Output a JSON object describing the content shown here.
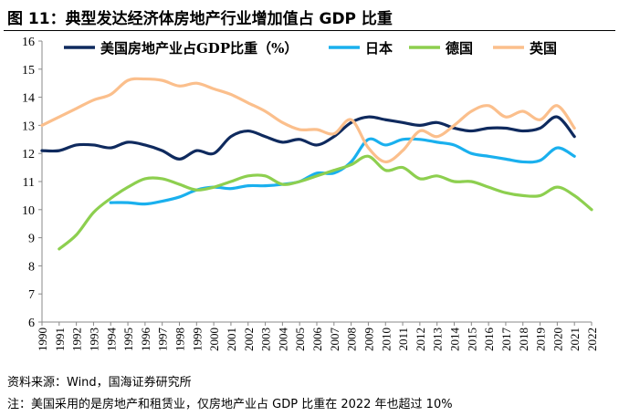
{
  "title": "图 11：典型发达经济体房地产行业增加值占 GDP 比重",
  "source": "资料来源：Wind，国海证券研究所",
  "note": "注：美国采用的是房地产和租赁业，仅房地产业占 GDP 比重在 2022 年也超过 10%",
  "chart_data": {
    "type": "line",
    "title": "图 11：典型发达经济体房地产行业增加值占 GDP 比重",
    "x": [
      1990,
      1991,
      1992,
      1993,
      1994,
      1995,
      1996,
      1997,
      1998,
      1999,
      2000,
      2001,
      2002,
      2003,
      2004,
      2005,
      2006,
      2007,
      2008,
      2009,
      2010,
      2011,
      2012,
      2013,
      2014,
      2015,
      2016,
      2017,
      2018,
      2019,
      2020,
      2021,
      2022
    ],
    "ylim": [
      6,
      16
    ],
    "yticks": [
      6,
      7,
      8,
      9,
      10,
      11,
      12,
      13,
      14,
      15,
      16
    ],
    "grid": false,
    "legend": "top",
    "series": [
      {
        "name": "美国房地产业占GDP比重（%）",
        "color": "#0F2A5E",
        "values": [
          12.1,
          12.1,
          12.3,
          12.3,
          12.2,
          12.4,
          12.3,
          12.1,
          11.8,
          12.1,
          12.0,
          12.6,
          12.8,
          12.6,
          12.4,
          12.5,
          12.3,
          12.6,
          13.1,
          13.3,
          13.2,
          13.1,
          13.0,
          13.1,
          12.9,
          12.8,
          12.9,
          12.9,
          12.8,
          12.9,
          13.3,
          12.6,
          null
        ]
      },
      {
        "name": "日本",
        "color": "#1AB0EE",
        "values": [
          null,
          null,
          null,
          null,
          10.25,
          10.25,
          10.2,
          10.3,
          10.45,
          10.7,
          10.8,
          10.75,
          10.85,
          10.85,
          10.9,
          11.0,
          11.3,
          11.3,
          11.7,
          12.5,
          12.3,
          12.5,
          12.5,
          12.4,
          12.3,
          12.0,
          11.9,
          11.8,
          11.7,
          11.75,
          12.2,
          11.9,
          null
        ]
      },
      {
        "name": "德国",
        "color": "#8DCF4F",
        "values": [
          null,
          8.6,
          9.1,
          9.9,
          10.4,
          10.8,
          11.1,
          11.1,
          10.9,
          10.7,
          10.8,
          11.0,
          11.2,
          11.2,
          10.9,
          11.0,
          11.2,
          11.4,
          11.6,
          11.9,
          11.4,
          11.5,
          11.1,
          11.2,
          11.0,
          11.0,
          10.8,
          10.6,
          10.5,
          10.5,
          10.8,
          10.5,
          10.0
        ]
      },
      {
        "name": "英国",
        "color": "#FBBF8C",
        "values": [
          13.0,
          13.3,
          13.6,
          13.9,
          14.1,
          14.6,
          14.65,
          14.6,
          14.4,
          14.5,
          14.3,
          14.1,
          13.8,
          13.5,
          13.1,
          12.85,
          12.85,
          12.7,
          13.2,
          12.2,
          11.7,
          12.1,
          12.8,
          12.6,
          13.0,
          13.5,
          13.7,
          13.3,
          13.5,
          13.2,
          13.7,
          12.9,
          null
        ]
      }
    ]
  }
}
